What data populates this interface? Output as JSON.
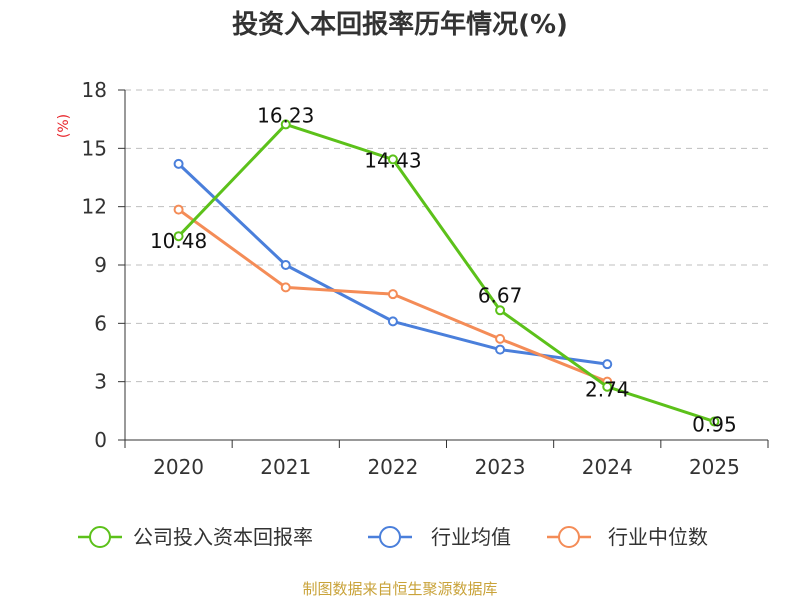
{
  "colors": {
    "company": "#5cc11a",
    "average": "#4a7fdb",
    "median": "#f48c57",
    "grid": "#bfbfbf",
    "axis": "#333333",
    "unit": "#e8262c",
    "source": "#c9a33a"
  },
  "chart_data": {
    "type": "line",
    "title": "投资入本回报率历年情况(%)",
    "ylabel": "(%)",
    "categories": [
      "2020",
      "2021",
      "2022",
      "2023",
      "2024",
      "2025"
    ],
    "ylim": [
      0,
      18
    ],
    "yticks": [
      0,
      3,
      6,
      9,
      12,
      15,
      18
    ],
    "grid": true,
    "legend_position": "bottom",
    "series": [
      {
        "key": "company",
        "name": "公司投入资本回报率",
        "values": [
          10.48,
          16.23,
          14.43,
          6.67,
          2.74,
          0.95
        ],
        "show_labels": true
      },
      {
        "key": "average",
        "name": "行业均值",
        "values": [
          14.2,
          9.0,
          6.1,
          4.65,
          3.9,
          null
        ],
        "show_labels": false
      },
      {
        "key": "median",
        "name": "行业中位数",
        "values": [
          11.85,
          7.85,
          7.5,
          5.2,
          3.0,
          null
        ],
        "show_labels": false
      }
    ]
  },
  "source": "制图数据来自恒生聚源数据库"
}
